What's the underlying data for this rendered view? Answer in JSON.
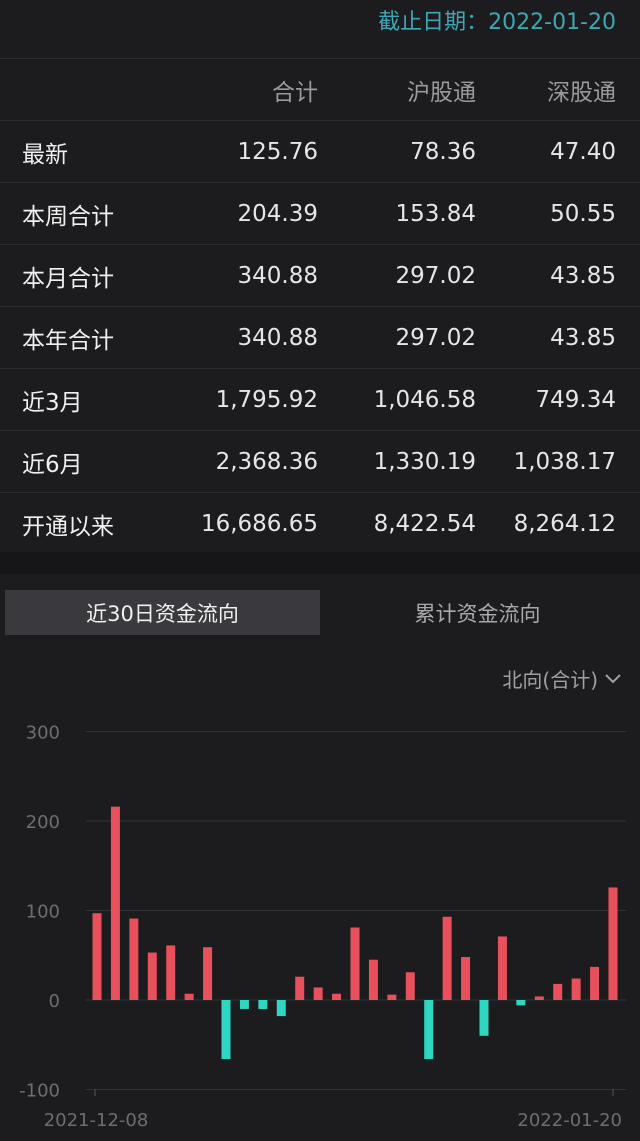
{
  "header": {
    "date_label": "截止日期：2022-01-20"
  },
  "table": {
    "columns": [
      "",
      "合计",
      "沪股通",
      "深股通"
    ],
    "rows": [
      [
        "最新",
        "125.76",
        "78.36",
        "47.40"
      ],
      [
        "本周合计",
        "204.39",
        "153.84",
        "50.55"
      ],
      [
        "本月合计",
        "340.88",
        "297.02",
        "43.85"
      ],
      [
        "本年合计",
        "340.88",
        "297.02",
        "43.85"
      ],
      [
        "近3月",
        "1,795.92",
        "1,046.58",
        "749.34"
      ],
      [
        "近6月",
        "2,368.36",
        "1,330.19",
        "1,038.17"
      ],
      [
        "开通以来",
        "16,686.65",
        "8,422.54",
        "8,264.12"
      ]
    ]
  },
  "tabs": [
    {
      "label": "近30日资金流向",
      "active": true
    },
    {
      "label": "累计资金流向",
      "active": false
    }
  ],
  "dropdown": {
    "label": "北向(合计)",
    "icon": "chevron-down-icon"
  },
  "colors": {
    "positive": "#e8505b",
    "negative": "#2fd6c1",
    "accent": "#3fa7b3"
  },
  "chart_data": {
    "type": "bar",
    "ylim": [
      -100,
      300
    ],
    "yticks": [
      "300",
      "200",
      "100",
      "0",
      "-100"
    ],
    "x_start_label": "2021-12-08",
    "x_end_label": "2022-01-20",
    "values": [
      97,
      216,
      91,
      53,
      61,
      7,
      59,
      -66,
      -10,
      -10,
      -18,
      26,
      14,
      7,
      81,
      45,
      6,
      31,
      -66,
      93,
      48,
      -40,
      71,
      -6,
      4,
      18,
      24,
      37,
      125.76
    ],
    "grid": true
  }
}
